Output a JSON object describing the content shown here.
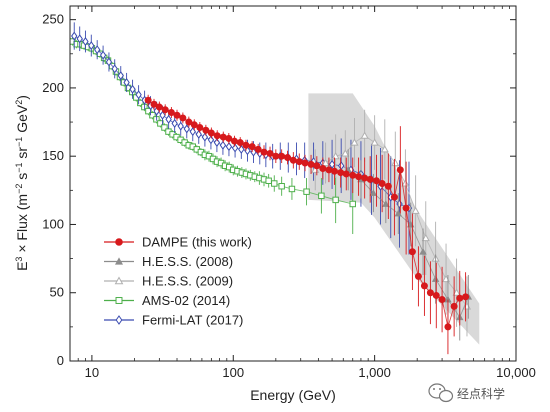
{
  "chart_data": {
    "type": "scatter",
    "xscale": "log",
    "xlim": [
      7,
      10000
    ],
    "ylim": [
      0,
      260
    ],
    "xlabel": "Energy (GeV)",
    "ylabel_parts": [
      "E",
      "3",
      " × Flux (m",
      "−2",
      " s",
      "−1",
      " sr",
      "−1",
      " GeV",
      "2",
      ")"
    ],
    "xticks": [
      {
        "value": 10,
        "label": "10"
      },
      {
        "value": 100,
        "label": "100"
      },
      {
        "value": 1000,
        "label": "1,000"
      },
      {
        "value": 10000,
        "label": "10,000"
      }
    ],
    "yticks": [
      0,
      50,
      100,
      150,
      200,
      250
    ],
    "yticklabels": [
      "0",
      "50",
      "100",
      "150",
      "200",
      "250"
    ],
    "legend_position": "lower-left",
    "shaded_band": {
      "upper": [
        [
          340,
          196
        ],
        [
          700,
          196
        ],
        [
          1000,
          172
        ],
        [
          2000,
          110
        ],
        [
          5500,
          42
        ]
      ],
      "lower": [
        [
          340,
          118
        ],
        [
          800,
          116
        ],
        [
          1000,
          105
        ],
        [
          2000,
          60
        ],
        [
          5500,
          12
        ]
      ],
      "color": "#d9d9d9"
    },
    "series": [
      {
        "name": "DAMPE (this work)",
        "color": "#d7191c",
        "marker": "circle-filled",
        "line": true,
        "points": [
          [
            25,
            191,
            4
          ],
          [
            27.5,
            188,
            4
          ],
          [
            30,
            186,
            4
          ],
          [
            33,
            184,
            4
          ],
          [
            36.5,
            182,
            4
          ],
          [
            40,
            180,
            4
          ],
          [
            44,
            178,
            4
          ],
          [
            48.5,
            175,
            4
          ],
          [
            53,
            173,
            4
          ],
          [
            58,
            171,
            4
          ],
          [
            64,
            169,
            4
          ],
          [
            70,
            167,
            4
          ],
          [
            77,
            165,
            4
          ],
          [
            85,
            164,
            4
          ],
          [
            93,
            163,
            4
          ],
          [
            102,
            161,
            4
          ],
          [
            112,
            160,
            4
          ],
          [
            123,
            158,
            4
          ],
          [
            136,
            157,
            4
          ],
          [
            150,
            155,
            4
          ],
          [
            165,
            153,
            5
          ],
          [
            182,
            152,
            5
          ],
          [
            200,
            150,
            5
          ],
          [
            220,
            150,
            5
          ],
          [
            242,
            149,
            5
          ],
          [
            266,
            147,
            6
          ],
          [
            293,
            146,
            6
          ],
          [
            322,
            145,
            6
          ],
          [
            355,
            144,
            7
          ],
          [
            390,
            143,
            7
          ],
          [
            430,
            141,
            8
          ],
          [
            475,
            140,
            9
          ],
          [
            520,
            139,
            10
          ],
          [
            575,
            138,
            11
          ],
          [
            630,
            137,
            12
          ],
          [
            700,
            136,
            13
          ],
          [
            770,
            135,
            14
          ],
          [
            850,
            134,
            15
          ],
          [
            930,
            133,
            17
          ],
          [
            1030,
            132,
            19
          ],
          [
            1130,
            130,
            21
          ],
          [
            1250,
            128,
            24
          ],
          [
            1380,
            120,
            28
          ],
          [
            1520,
            140,
            32
          ],
          [
            1670,
            112,
            34
          ],
          [
            1850,
            80,
            28
          ],
          [
            2040,
            62,
            22
          ],
          [
            2250,
            55,
            22
          ],
          [
            2480,
            50,
            23
          ],
          [
            2730,
            48,
            24
          ],
          [
            3000,
            45,
            24
          ],
          [
            3300,
            25,
            20
          ],
          [
            3650,
            40,
            22
          ],
          [
            4000,
            46,
            20
          ],
          [
            4400,
            47,
            18
          ]
        ]
      },
      {
        "name": "H.E.S.S. (2008)",
        "color": "#8c8c8c",
        "marker": "triangle-filled",
        "line": true,
        "points": [
          [
            650,
            140,
            15
          ],
          [
            800,
            133,
            14
          ],
          [
            980,
            123,
            14
          ],
          [
            1200,
            115,
            14
          ],
          [
            1470,
            108,
            15
          ],
          [
            1800,
            100,
            16
          ],
          [
            2200,
            80,
            17
          ],
          [
            2700,
            60,
            18
          ],
          [
            3300,
            45,
            18
          ],
          [
            4000,
            32,
            17
          ],
          [
            4600,
            47,
            16
          ]
        ]
      },
      {
        "name": "H.E.S.S. (2009)",
        "color": "#b0b0b0",
        "marker": "triangle-open",
        "line": true,
        "points": [
          [
            380,
            140,
            15
          ],
          [
            450,
            145,
            15
          ],
          [
            530,
            150,
            16
          ],
          [
            620,
            152,
            17
          ],
          [
            720,
            160,
            18
          ],
          [
            850,
            165,
            19
          ],
          [
            1000,
            160,
            20
          ],
          [
            1180,
            155,
            22
          ],
          [
            1400,
            145,
            23
          ],
          [
            1650,
            130,
            25
          ],
          [
            1950,
            110,
            26
          ],
          [
            2300,
            90,
            27
          ],
          [
            2700,
            75,
            27
          ],
          [
            3200,
            60,
            26
          ],
          [
            3800,
            50,
            25
          ],
          [
            4500,
            40,
            22
          ]
        ]
      },
      {
        "name": "AMS-02 (2014)",
        "color": "#4daf4a",
        "marker": "square-open",
        "line": true,
        "points": [
          [
            7.3,
            234,
            3
          ],
          [
            7.8,
            232,
            3
          ],
          [
            8.3,
            232,
            3
          ],
          [
            8.8,
            231,
            3
          ],
          [
            9.4,
            230,
            3
          ],
          [
            10,
            229,
            3
          ],
          [
            10.7,
            227,
            3
          ],
          [
            11.4,
            225,
            3
          ],
          [
            12.2,
            222,
            3
          ],
          [
            13,
            220,
            3
          ],
          [
            13.9,
            216,
            3
          ],
          [
            14.8,
            212,
            3
          ],
          [
            15.8,
            208,
            3
          ],
          [
            16.9,
            204,
            3
          ],
          [
            18,
            200,
            3
          ],
          [
            19.3,
            197,
            3
          ],
          [
            20.6,
            193,
            3
          ],
          [
            22,
            189,
            3
          ],
          [
            23.5,
            186,
            3
          ],
          [
            25.1,
            183,
            3
          ],
          [
            26.8,
            180,
            3
          ],
          [
            28.6,
            177,
            3
          ],
          [
            30.5,
            174,
            3
          ],
          [
            32.6,
            171,
            3
          ],
          [
            34.8,
            168,
            3
          ],
          [
            37.2,
            166,
            3
          ],
          [
            39.7,
            164,
            3
          ],
          [
            42.4,
            162,
            3
          ],
          [
            45.3,
            160,
            3
          ],
          [
            48.4,
            158,
            3
          ],
          [
            51.7,
            157,
            3
          ],
          [
            55.2,
            155,
            3
          ],
          [
            59,
            153,
            3
          ],
          [
            63,
            151,
            4
          ],
          [
            67.3,
            150,
            4
          ],
          [
            71.9,
            148,
            4
          ],
          [
            76.8,
            146,
            4
          ],
          [
            82,
            145,
            4
          ],
          [
            87.6,
            143,
            4
          ],
          [
            93.6,
            142,
            4
          ],
          [
            100,
            140,
            4
          ],
          [
            107,
            139,
            4
          ],
          [
            115,
            138,
            4
          ],
          [
            123,
            137,
            4
          ],
          [
            132,
            136,
            4
          ],
          [
            142,
            135,
            4
          ],
          [
            153,
            134,
            5
          ],
          [
            165,
            133,
            5
          ],
          [
            178,
            132,
            5
          ],
          [
            195,
            130,
            6
          ],
          [
            220,
            128,
            7
          ],
          [
            260,
            126,
            8
          ],
          [
            330,
            124,
            10
          ],
          [
            420,
            121,
            13
          ],
          [
            530,
            118,
            17
          ],
          [
            700,
            115,
            22
          ]
        ]
      },
      {
        "name": "Fermi-LAT (2017)",
        "color": "#3a4bb0",
        "marker": "diamond-open",
        "line": true,
        "points": [
          [
            7.5,
            238,
            10
          ],
          [
            8.2,
            236,
            9
          ],
          [
            9,
            234,
            8
          ],
          [
            9.9,
            231,
            8
          ],
          [
            10.9,
            228,
            7
          ],
          [
            12,
            224,
            7
          ],
          [
            13.2,
            219,
            7
          ],
          [
            14.5,
            214,
            7
          ],
          [
            16,
            209,
            7
          ],
          [
            17.6,
            204,
            7
          ],
          [
            19.4,
            199,
            7
          ],
          [
            21.4,
            195,
            7
          ],
          [
            23.6,
            191,
            7
          ],
          [
            26,
            187,
            7
          ],
          [
            28.7,
            183,
            7
          ],
          [
            31.6,
            180,
            7
          ],
          [
            34.9,
            177,
            7
          ],
          [
            38.5,
            174,
            7
          ],
          [
            42.5,
            172,
            7
          ],
          [
            46.9,
            170,
            7
          ],
          [
            51.7,
            168,
            7
          ],
          [
            57,
            166,
            7
          ],
          [
            63,
            164,
            7
          ],
          [
            69.5,
            162,
            7
          ],
          [
            76.6,
            160,
            7
          ],
          [
            84.5,
            158,
            7
          ],
          [
            93.2,
            157,
            7
          ],
          [
            103,
            156,
            7
          ],
          [
            114,
            155,
            7
          ],
          [
            126,
            154,
            8
          ],
          [
            139,
            153,
            8
          ],
          [
            154,
            152,
            8
          ],
          [
            170,
            151,
            9
          ],
          [
            190,
            150,
            9
          ],
          [
            215,
            150,
            10
          ],
          [
            245,
            149,
            11
          ],
          [
            280,
            148,
            12
          ],
          [
            320,
            147,
            13
          ],
          [
            370,
            146,
            14
          ],
          [
            430,
            145,
            16
          ],
          [
            500,
            144,
            18
          ],
          [
            580,
            143,
            20
          ],
          [
            680,
            140,
            22
          ],
          [
            800,
            137,
            24
          ],
          [
            950,
            133,
            26
          ],
          [
            1100,
            128,
            28
          ],
          [
            1300,
            120,
            30
          ],
          [
            1500,
            115,
            32
          ],
          [
            1750,
            112,
            34
          ]
        ]
      }
    ]
  },
  "watermark": {
    "text": "经点科学",
    "icon": "wechat-icon"
  }
}
